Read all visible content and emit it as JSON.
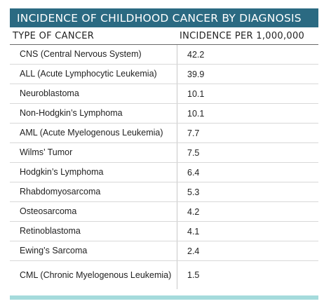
{
  "chart_data": {
    "type": "table",
    "title": "INCIDENCE OF CHILDHOOD CANCER BY DIAGNOSIS",
    "columns": [
      "TYPE OF CANCER",
      "INCIDENCE PER 1,000,000"
    ],
    "rows": [
      {
        "name": "CNS (Central Nervous System)",
        "value": "42.2"
      },
      {
        "name": "ALL (Acute Lymphocytic Leukemia)",
        "value": "39.9"
      },
      {
        "name": "Neuroblastoma",
        "value": "10.1"
      },
      {
        "name": "Non-Hodgkin’s Lymphoma",
        "value": "10.1"
      },
      {
        "name": "AML (Acute Myelogenous Leukemia)",
        "value": "7.7"
      },
      {
        "name": "Wilms’ Tumor",
        "value": "7.5"
      },
      {
        "name": "Hodgkin’s Lymphoma",
        "value": "6.4"
      },
      {
        "name": "Rhabdomyosarcoma",
        "value": "5.3"
      },
      {
        "name": "Osteosarcoma",
        "value": "4.2"
      },
      {
        "name": "Retinoblastoma",
        "value": "4.1"
      },
      {
        "name": "Ewing’s Sarcoma",
        "value": "2.4"
      },
      {
        "name": "CML (Chronic Myelogenous Leukemia)",
        "value": "1.5"
      }
    ]
  },
  "colors": {
    "title_bar": "#2b6a82",
    "title_text": "#ffffff",
    "bottom_bar": "#a5dbdc"
  }
}
